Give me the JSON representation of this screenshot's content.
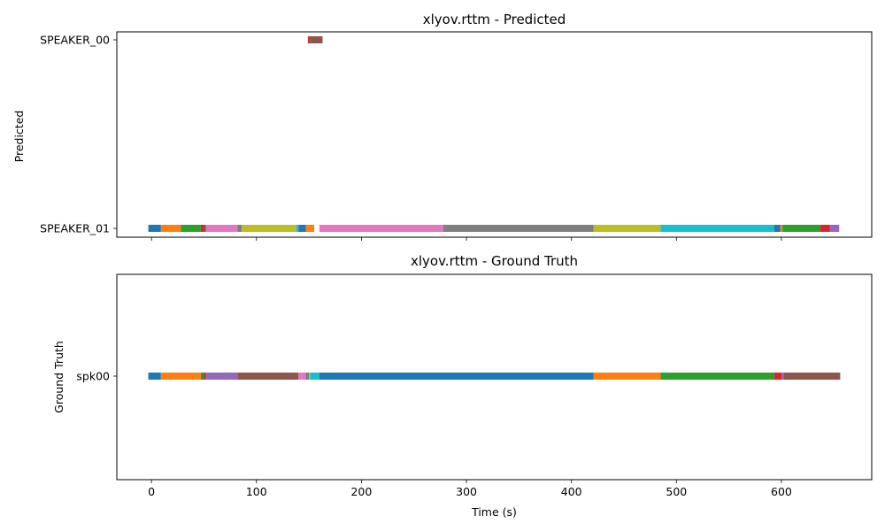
{
  "chart_data": [
    {
      "type": "timeline",
      "title": "xlyov.rttm - Predicted",
      "ylabel": "Predicted",
      "xlabel": "",
      "xlim": [
        -33,
        686
      ],
      "xticks": [
        0,
        100,
        200,
        300,
        400,
        500,
        600
      ],
      "rows": [
        "SPEAKER_01",
        "SPEAKER_00"
      ],
      "segments": [
        {
          "row": "SPEAKER_01",
          "start": -3,
          "end": 9,
          "color": "#1f77b4"
        },
        {
          "row": "SPEAKER_01",
          "start": 9,
          "end": 28,
          "color": "#ff7f0e"
        },
        {
          "row": "SPEAKER_01",
          "start": 28,
          "end": 47,
          "color": "#2ca02c"
        },
        {
          "row": "SPEAKER_01",
          "start": 47,
          "end": 50,
          "color": "#d62728"
        },
        {
          "row": "SPEAKER_01",
          "start": 50,
          "end": 52,
          "color": "#8c564b"
        },
        {
          "row": "SPEAKER_01",
          "start": 52,
          "end": 82,
          "color": "#e377c2"
        },
        {
          "row": "SPEAKER_01",
          "start": 82,
          "end": 86,
          "color": "#7f7f7f"
        },
        {
          "row": "SPEAKER_01",
          "start": 86,
          "end": 138,
          "color": "#bcbd22"
        },
        {
          "row": "SPEAKER_01",
          "start": 138,
          "end": 140,
          "color": "#17becf"
        },
        {
          "row": "SPEAKER_01",
          "start": 140,
          "end": 147,
          "color": "#1f77b4"
        },
        {
          "row": "SPEAKER_01",
          "start": 147,
          "end": 155,
          "color": "#ff7f0e"
        },
        {
          "row": "SPEAKER_01",
          "start": 160,
          "end": 278,
          "color": "#e377c2"
        },
        {
          "row": "SPEAKER_01",
          "start": 278,
          "end": 421,
          "color": "#7f7f7f"
        },
        {
          "row": "SPEAKER_01",
          "start": 421,
          "end": 485,
          "color": "#bcbd22"
        },
        {
          "row": "SPEAKER_01",
          "start": 485,
          "end": 593,
          "color": "#17becf"
        },
        {
          "row": "SPEAKER_01",
          "start": 593,
          "end": 599,
          "color": "#1f77b4"
        },
        {
          "row": "SPEAKER_01",
          "start": 599,
          "end": 601,
          "color": "#ff7f0e"
        },
        {
          "row": "SPEAKER_01",
          "start": 601,
          "end": 637,
          "color": "#2ca02c"
        },
        {
          "row": "SPEAKER_01",
          "start": 637,
          "end": 646,
          "color": "#d62728"
        },
        {
          "row": "SPEAKER_01",
          "start": 646,
          "end": 655,
          "color": "#9467bd"
        },
        {
          "row": "SPEAKER_00",
          "start": 149,
          "end": 151,
          "color": "#d62728"
        },
        {
          "row": "SPEAKER_00",
          "start": 151,
          "end": 163,
          "color": "#8c564b"
        }
      ]
    },
    {
      "type": "timeline",
      "title": "xlyov.rttm - Ground Truth",
      "ylabel": "Ground Truth",
      "xlabel": "Time (s)",
      "xlim": [
        -33,
        686
      ],
      "xticks": [
        0,
        100,
        200,
        300,
        400,
        500,
        600
      ],
      "rows": [
        "spk00"
      ],
      "segments": [
        {
          "row": "spk00",
          "start": -3,
          "end": 9,
          "color": "#1f77b4"
        },
        {
          "row": "spk00",
          "start": 9,
          "end": 47,
          "color": "#ff7f0e"
        },
        {
          "row": "spk00",
          "start": 47,
          "end": 50,
          "color": "#2ca02c"
        },
        {
          "row": "spk00",
          "start": 50,
          "end": 52,
          "color": "#d62728"
        },
        {
          "row": "spk00",
          "start": 52,
          "end": 82,
          "color": "#9467bd"
        },
        {
          "row": "spk00",
          "start": 82,
          "end": 140,
          "color": "#8c564b"
        },
        {
          "row": "spk00",
          "start": 140,
          "end": 147,
          "color": "#e377c2"
        },
        {
          "row": "spk00",
          "start": 147,
          "end": 150,
          "color": "#7f7f7f"
        },
        {
          "row": "spk00",
          "start": 150,
          "end": 151,
          "color": "#bcbd22"
        },
        {
          "row": "spk00",
          "start": 151,
          "end": 160,
          "color": "#17becf"
        },
        {
          "row": "spk00",
          "start": 160,
          "end": 421,
          "color": "#1f77b4"
        },
        {
          "row": "spk00",
          "start": 421,
          "end": 485,
          "color": "#ff7f0e"
        },
        {
          "row": "spk00",
          "start": 485,
          "end": 593,
          "color": "#2ca02c"
        },
        {
          "row": "spk00",
          "start": 593,
          "end": 600,
          "color": "#d62728"
        },
        {
          "row": "spk00",
          "start": 600,
          "end": 602,
          "color": "#9467bd"
        },
        {
          "row": "spk00",
          "start": 602,
          "end": 656,
          "color": "#8c564b"
        }
      ]
    }
  ]
}
